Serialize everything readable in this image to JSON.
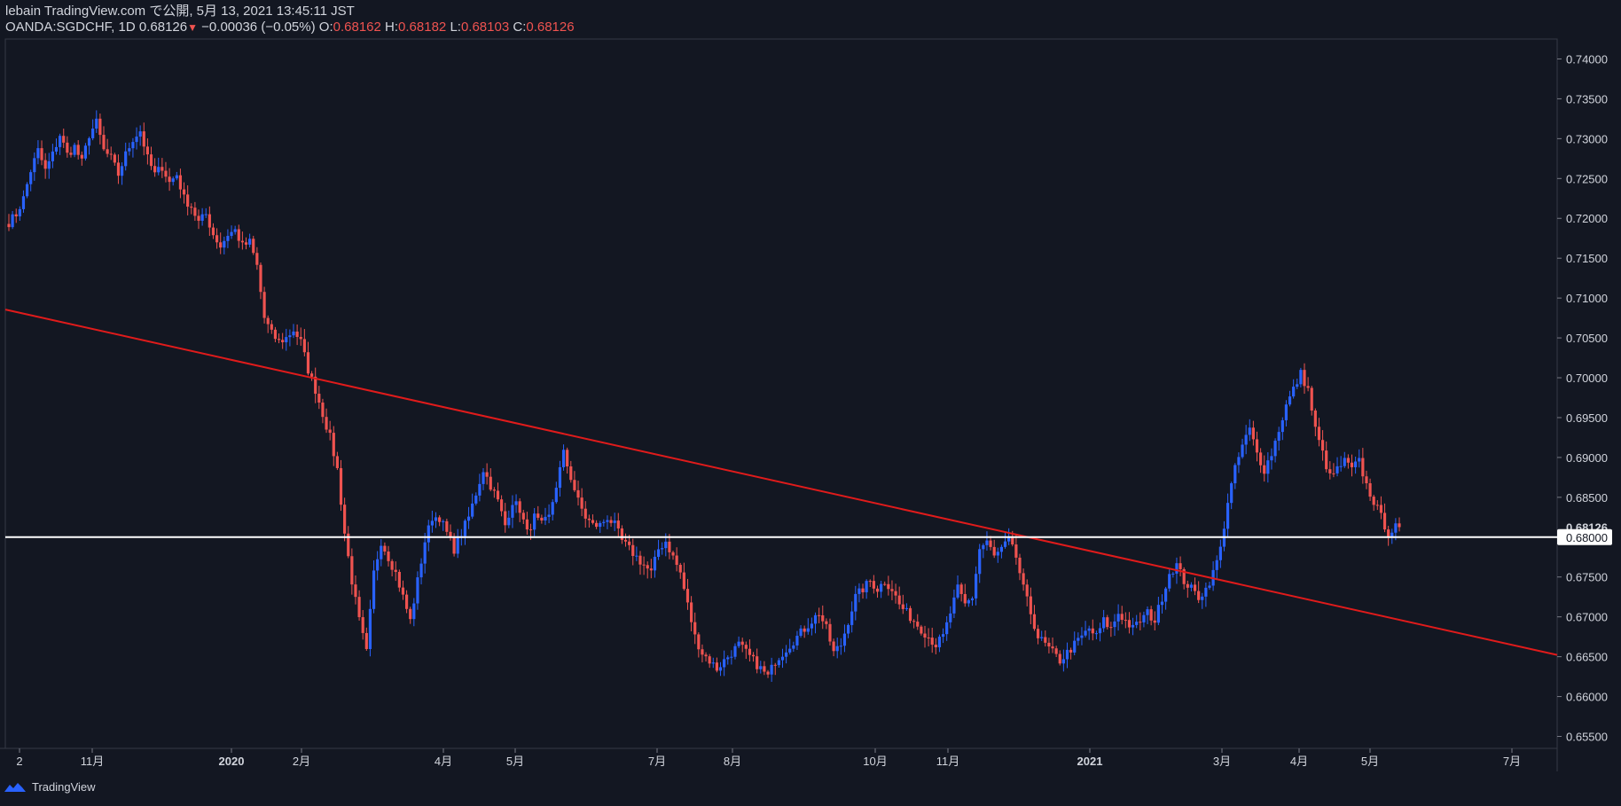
{
  "header": {
    "line1": "lebain TradingView.com で公開, 5月 13, 2021 13:45:11 JST",
    "symbol": "OANDA:SGDCHF, 1D",
    "last": "0.68126",
    "change": "−0.00036 (−0.05%)",
    "o_label": "O:",
    "o_val": "0.68162",
    "h_label": "H:",
    "h_val": "0.68182",
    "l_label": "L:",
    "l_val": "0.68103",
    "c_label": "C:",
    "c_val": "0.68126"
  },
  "footer": {
    "logo_text": "TradingView"
  },
  "colors": {
    "bg": "#131722",
    "up": "#2962ff",
    "down": "#ef5350",
    "trend": "#e01b1b",
    "hline": "#ffffff"
  },
  "chart_data": {
    "type": "candlestick",
    "x_tick_labels": [
      "2",
      "11月",
      "2020",
      "2月",
      "4月",
      "5月",
      "7月",
      "8月",
      "10月",
      "11月",
      "2021",
      "3月",
      "4月",
      "5月",
      "7月"
    ],
    "y_tick_labels": [
      "0.74000",
      "0.73500",
      "0.73000",
      "0.72500",
      "0.72000",
      "0.71500",
      "0.71000",
      "0.70500",
      "0.70000",
      "0.69500",
      "0.69000",
      "0.68500",
      "0.68126",
      "0.68000",
      "0.67500",
      "0.67000",
      "0.66500",
      "0.66000",
      "0.65500"
    ],
    "y_range": [
      0.6535,
      0.7425
    ],
    "current_price": "0.68126",
    "horizontal_line": {
      "value": 0.68,
      "label": "0.68000"
    },
    "trend_line": {
      "from": {
        "date": "2019-09",
        "value": 0.706
      },
      "to": {
        "date": "2021-08",
        "value": 0.666
      }
    },
    "anchors": [
      0.7195,
      0.7205,
      0.7225,
      0.726,
      0.7285,
      0.726,
      0.728,
      0.7305,
      0.728,
      0.729,
      0.727,
      0.7305,
      0.732,
      0.7285,
      0.7275,
      0.7255,
      0.728,
      0.73,
      0.731,
      0.7275,
      0.7255,
      0.7265,
      0.7245,
      0.7255,
      0.7225,
      0.7215,
      0.7195,
      0.7205,
      0.718,
      0.7165,
      0.718,
      0.7185,
      0.7165,
      0.717,
      0.714,
      0.7075,
      0.7055,
      0.7045,
      0.705,
      0.706,
      0.7045,
      0.701,
      0.6985,
      0.6955,
      0.6925,
      0.6885,
      0.6805,
      0.6745,
      0.6695,
      0.6655,
      0.6755,
      0.6795,
      0.6775,
      0.6755,
      0.6725,
      0.6695,
      0.6745,
      0.6795,
      0.6825,
      0.6825,
      0.6805,
      0.6785,
      0.6805,
      0.6825,
      0.6855,
      0.6885,
      0.6865,
      0.6845,
      0.6815,
      0.6845,
      0.6835,
      0.6805,
      0.6825,
      0.6815,
      0.6825,
      0.6865,
      0.6905,
      0.6875,
      0.6845,
      0.6825,
      0.6815,
      0.6815,
      0.6825,
      0.6815,
      0.6795,
      0.6785,
      0.6775,
      0.6765,
      0.6755,
      0.6785,
      0.6795,
      0.6775,
      0.6755,
      0.6715,
      0.6675,
      0.6655,
      0.6645,
      0.6635,
      0.6645,
      0.6655,
      0.6665,
      0.6655,
      0.6645,
      0.6635,
      0.6625,
      0.6645,
      0.6655,
      0.6665,
      0.6675,
      0.6685,
      0.6695,
      0.6705,
      0.6685,
      0.6655,
      0.6665,
      0.6695,
      0.6725,
      0.6735,
      0.6745,
      0.6735,
      0.6745,
      0.6735,
      0.6715,
      0.6705,
      0.6695,
      0.6685,
      0.6675,
      0.6665,
      0.6675,
      0.6705,
      0.6735,
      0.6715,
      0.6725,
      0.6785,
      0.6795,
      0.6775,
      0.6785,
      0.6795,
      0.6775,
      0.6735,
      0.6705,
      0.6675,
      0.6665,
      0.6655,
      0.6645,
      0.6655,
      0.6665,
      0.6675,
      0.6685,
      0.6675,
      0.6695,
      0.6685,
      0.6705,
      0.6695,
      0.6685,
      0.6695,
      0.6705,
      0.6695,
      0.6725,
      0.6755,
      0.6765,
      0.6745,
      0.6735,
      0.6725,
      0.6735,
      0.6755,
      0.6785,
      0.6845,
      0.6885,
      0.6915,
      0.6935,
      0.6905,
      0.6885,
      0.6905,
      0.6935,
      0.6965,
      0.6985,
      0.7005,
      0.6985,
      0.6935,
      0.6905,
      0.6875,
      0.6885,
      0.6895,
      0.6885,
      0.6895,
      0.6865,
      0.6845,
      0.6825,
      0.6805,
      0.6812
    ]
  }
}
